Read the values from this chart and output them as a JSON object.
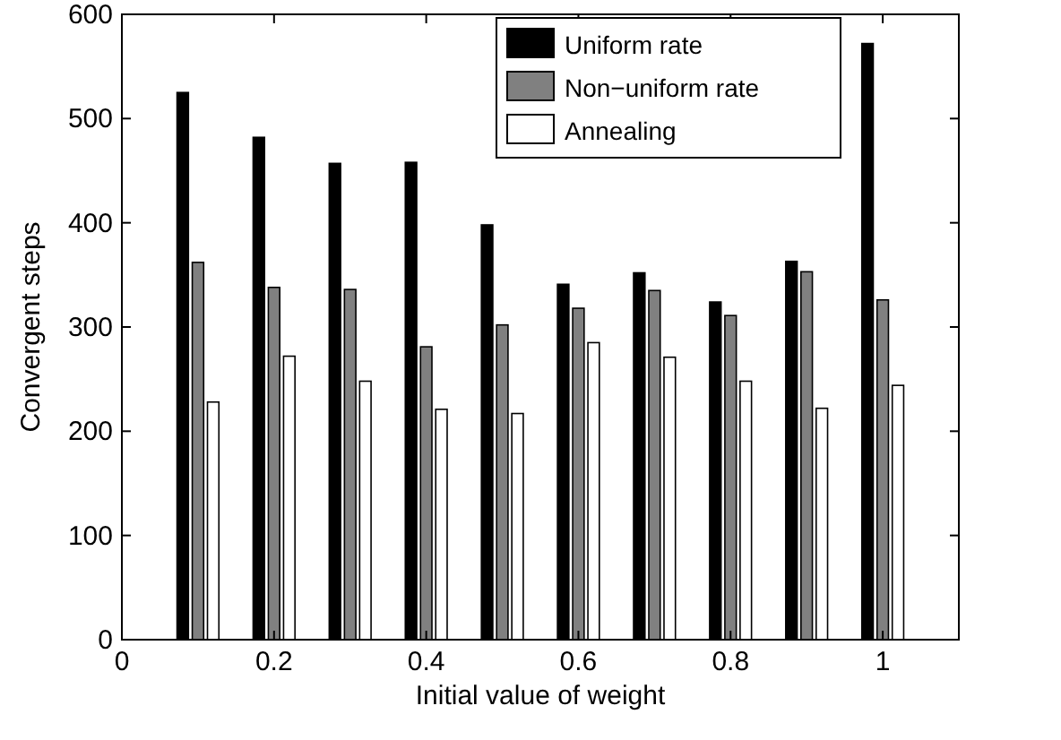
{
  "chart_data": {
    "type": "bar",
    "xlabel": "Initial value of weight",
    "ylabel": "Convergent steps",
    "x": [
      0.1,
      0.2,
      0.3,
      0.4,
      0.5,
      0.6,
      0.7,
      0.8,
      0.9,
      1
    ],
    "series": [
      {
        "name": "Uniform rate",
        "color": "#000000",
        "values": [
          525,
          482,
          457,
          458,
          398,
          341,
          352,
          324,
          363,
          572
        ]
      },
      {
        "name": "Non−uniform rate",
        "color": "#808080",
        "values": [
          362,
          338,
          336,
          281,
          302,
          318,
          335,
          311,
          353,
          326
        ]
      },
      {
        "name": "Annealing",
        "color": "#ffffff",
        "values": [
          228,
          272,
          248,
          221,
          217,
          285,
          271,
          248,
          222,
          244
        ]
      }
    ],
    "xlim": [
      0,
      1.1
    ],
    "xticks": [
      0,
      0.2,
      0.4,
      0.6,
      0.8,
      1
    ],
    "ylim": [
      0,
      600
    ],
    "yticks": [
      0,
      100,
      200,
      300,
      400,
      500,
      600
    ],
    "grid": false,
    "legend": "top right"
  }
}
